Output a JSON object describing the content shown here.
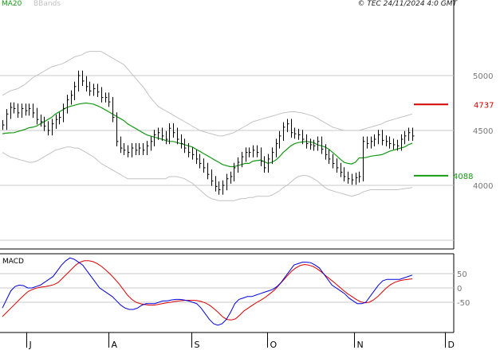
{
  "header": {
    "ma_label": "MA20",
    "bb_label": "BBands",
    "copyright": "© TEC 24/11/2024 4:0 GMT"
  },
  "colors": {
    "price": "#000000",
    "ma": "#159a15",
    "bbands": "#c2c2c2",
    "grid": "#c8c8c8",
    "resistance": "#d40000",
    "support": "#159a15",
    "macd": "#0000dd",
    "signal": "#dd0000"
  },
  "chart_data": [
    {
      "type": "line",
      "panel": "price",
      "y_ticks": [
        "5000",
        "4500",
        "4000"
      ],
      "y_ticks_values": [
        5000,
        4500,
        4000
      ],
      "ylim": [
        3500,
        5300
      ],
      "grid": true,
      "levels": [
        {
          "label": "4737",
          "value": 4737,
          "color": "resistance"
        },
        {
          "label": "4088",
          "value": 4088,
          "color": "support"
        }
      ],
      "series": [
        {
          "values": [
            4550,
            4650,
            4710,
            4700,
            4660,
            4700,
            4680,
            4700,
            4660,
            4600,
            4580,
            4540,
            4500,
            4560,
            4600,
            4620,
            4700,
            4780,
            4820,
            4900,
            5000,
            4950,
            4900,
            4860,
            4880,
            4850,
            4800,
            4800,
            4760,
            4620,
            4400,
            4340,
            4320,
            4300,
            4340,
            4320,
            4340,
            4320,
            4360,
            4400,
            4460,
            4480,
            4450,
            4420,
            4520,
            4480,
            4420,
            4380,
            4340,
            4300,
            4280,
            4240,
            4200,
            4160,
            4100,
            4040,
            3990,
            3960,
            4000,
            4060,
            4080,
            4160,
            4210,
            4260,
            4300,
            4300,
            4320,
            4300,
            4220,
            4160,
            4240,
            4300,
            4380,
            4450,
            4530,
            4560,
            4480,
            4470,
            4460,
            4420,
            4380,
            4370,
            4360,
            4400,
            4330,
            4280,
            4240,
            4200,
            4160,
            4120,
            4080,
            4060,
            4050,
            4070,
            4080,
            4400,
            4380,
            4400,
            4420,
            4460,
            4410,
            4400,
            4380,
            4370,
            4360,
            4420,
            4450,
            4480,
            4450
          ]
        },
        {
          "name": "MA20",
          "values": [
            4470,
            4475,
            4478,
            4480,
            4490,
            4500,
            4510,
            4525,
            4530,
            4540,
            4560,
            4580,
            4600,
            4620,
            4650,
            4670,
            4690,
            4710,
            4720,
            4730,
            4740,
            4745,
            4750,
            4745,
            4740,
            4725,
            4710,
            4690,
            4670,
            4650,
            4630,
            4610,
            4590,
            4560,
            4540,
            4520,
            4500,
            4480,
            4460,
            4450,
            4440,
            4430,
            4420,
            4410,
            4400,
            4400,
            4390,
            4380,
            4370,
            4360,
            4350,
            4330,
            4310,
            4290,
            4270,
            4250,
            4230,
            4210,
            4190,
            4180,
            4170,
            4170,
            4180,
            4190,
            4200,
            4200,
            4220,
            4225,
            4230,
            4215,
            4200,
            4210,
            4230,
            4260,
            4300,
            4330,
            4360,
            4380,
            4390,
            4395,
            4400,
            4395,
            4390,
            4370,
            4360,
            4350,
            4330,
            4300,
            4270,
            4240,
            4210,
            4200,
            4195,
            4210,
            4250,
            4250,
            4255,
            4265,
            4270,
            4275,
            4280,
            4295,
            4310,
            4320,
            4330,
            4340,
            4350,
            4370,
            4385
          ]
        },
        {
          "name": "BBands",
          "values": [
            4820,
            4840,
            4860,
            4870,
            4880,
            4900,
            4920,
            4950,
            4980,
            5000,
            5020,
            5040,
            5060,
            5080,
            5090,
            5100,
            5110,
            5130,
            5150,
            5170,
            5180,
            5190,
            5210,
            5220,
            5220,
            5220,
            5220,
            5200,
            5180,
            5160,
            5140,
            5120,
            5100,
            5060,
            5020,
            4980,
            4940,
            4900,
            4850,
            4800,
            4760,
            4720,
            4700,
            4680,
            4660,
            4640,
            4620,
            4600,
            4580,
            4560,
            4540,
            4520,
            4500,
            4490,
            4480,
            4470,
            4460,
            4450,
            4450,
            4460,
            4470,
            4480,
            4500,
            4520,
            4540,
            4560,
            4580,
            4590,
            4600,
            4610,
            4620,
            4630,
            4640,
            4650,
            4660,
            4665,
            4670,
            4670,
            4665,
            4660,
            4650,
            4640,
            4630,
            4610,
            4590,
            4570,
            4550,
            4530,
            4520,
            4510,
            4500,
            4500,
            4500,
            4500,
            4500,
            4510,
            4520,
            4530,
            4540,
            4550,
            4560,
            4580,
            4590,
            4600,
            4610,
            4620,
            4630,
            4640,
            4650
          ]
        },
        {
          "name": "BBands",
          "values": [
            4300,
            4280,
            4260,
            4250,
            4240,
            4230,
            4220,
            4210,
            4210,
            4220,
            4240,
            4260,
            4280,
            4300,
            4320,
            4330,
            4340,
            4350,
            4350,
            4340,
            4340,
            4320,
            4300,
            4280,
            4260,
            4230,
            4200,
            4180,
            4160,
            4140,
            4120,
            4100,
            4080,
            4060,
            4060,
            4060,
            4060,
            4060,
            4060,
            4060,
            4060,
            4060,
            4060,
            4060,
            4080,
            4080,
            4080,
            4070,
            4060,
            4040,
            4020,
            3990,
            3960,
            3930,
            3900,
            3880,
            3870,
            3860,
            3860,
            3860,
            3860,
            3860,
            3870,
            3880,
            3880,
            3890,
            3890,
            3900,
            3900,
            3900,
            3900,
            3910,
            3930,
            3950,
            3980,
            4000,
            4030,
            4060,
            4080,
            4090,
            4090,
            4080,
            4060,
            4040,
            4010,
            3980,
            3960,
            3950,
            3940,
            3930,
            3920,
            3910,
            3900,
            3910,
            3920,
            3940,
            3950,
            3960,
            3960,
            3960,
            3960,
            3960,
            3960,
            3960,
            3960,
            3965,
            3970,
            3975,
            3980
          ]
        }
      ]
    },
    {
      "type": "line",
      "panel": "macd",
      "title": "MACD",
      "y_ticks": [
        "50",
        "0",
        "-50"
      ],
      "y_ticks_values": [
        50,
        0,
        -50
      ],
      "ylim": [
        -150,
        110
      ],
      "grid": true,
      "series": [
        {
          "values": [
            -70,
            -40,
            -10,
            5,
            10,
            8,
            0,
            0,
            5,
            10,
            20,
            30,
            40,
            60,
            80,
            95,
            105,
            100,
            90,
            80,
            60,
            40,
            20,
            0,
            -10,
            -20,
            -30,
            -45,
            -60,
            -70,
            -75,
            -75,
            -70,
            -60,
            -55,
            -55,
            -55,
            -50,
            -45,
            -45,
            -42,
            -40,
            -40,
            -42,
            -45,
            -50,
            -55,
            -70,
            -90,
            -110,
            -125,
            -130,
            -125,
            -110,
            -85,
            -55,
            -40,
            -35,
            -30,
            -30,
            -25,
            -20,
            -15,
            -10,
            -5,
            5,
            20,
            40,
            60,
            80,
            85,
            90,
            90,
            88,
            80,
            70,
            50,
            30,
            10,
            0,
            -10,
            -20,
            -35,
            -45,
            -55,
            -55,
            -50,
            -30,
            -10,
            10,
            25,
            30,
            30,
            30,
            30,
            35,
            40,
            45
          ]
        },
        {
          "values": [
            -100,
            -85,
            -70,
            -55,
            -40,
            -25,
            -12,
            -5,
            0,
            3,
            5,
            8,
            12,
            20,
            35,
            50,
            65,
            80,
            90,
            95,
            95,
            92,
            85,
            75,
            62,
            48,
            32,
            15,
            -5,
            -25,
            -40,
            -50,
            -55,
            -58,
            -60,
            -60,
            -58,
            -55,
            -52,
            -50,
            -47,
            -45,
            -44,
            -43,
            -43,
            -44,
            -47,
            -52,
            -60,
            -72,
            -85,
            -100,
            -110,
            -112,
            -108,
            -95,
            -80,
            -70,
            -60,
            -50,
            -42,
            -32,
            -20,
            -8,
            8,
            25,
            42,
            58,
            70,
            78,
            82,
            80,
            75,
            66,
            55,
            42,
            30,
            18,
            5,
            -8,
            -20,
            -30,
            -40,
            -48,
            -52,
            -50,
            -42,
            -30,
            -15,
            0,
            12,
            20,
            25,
            28,
            30,
            32
          ]
        }
      ]
    }
  ],
  "x_axis": {
    "ticks": [
      {
        "label": "J"
      },
      {
        "label": "A"
      },
      {
        "label": "S"
      },
      {
        "label": "O"
      },
      {
        "label": "N"
      },
      {
        "label": "D"
      }
    ]
  }
}
